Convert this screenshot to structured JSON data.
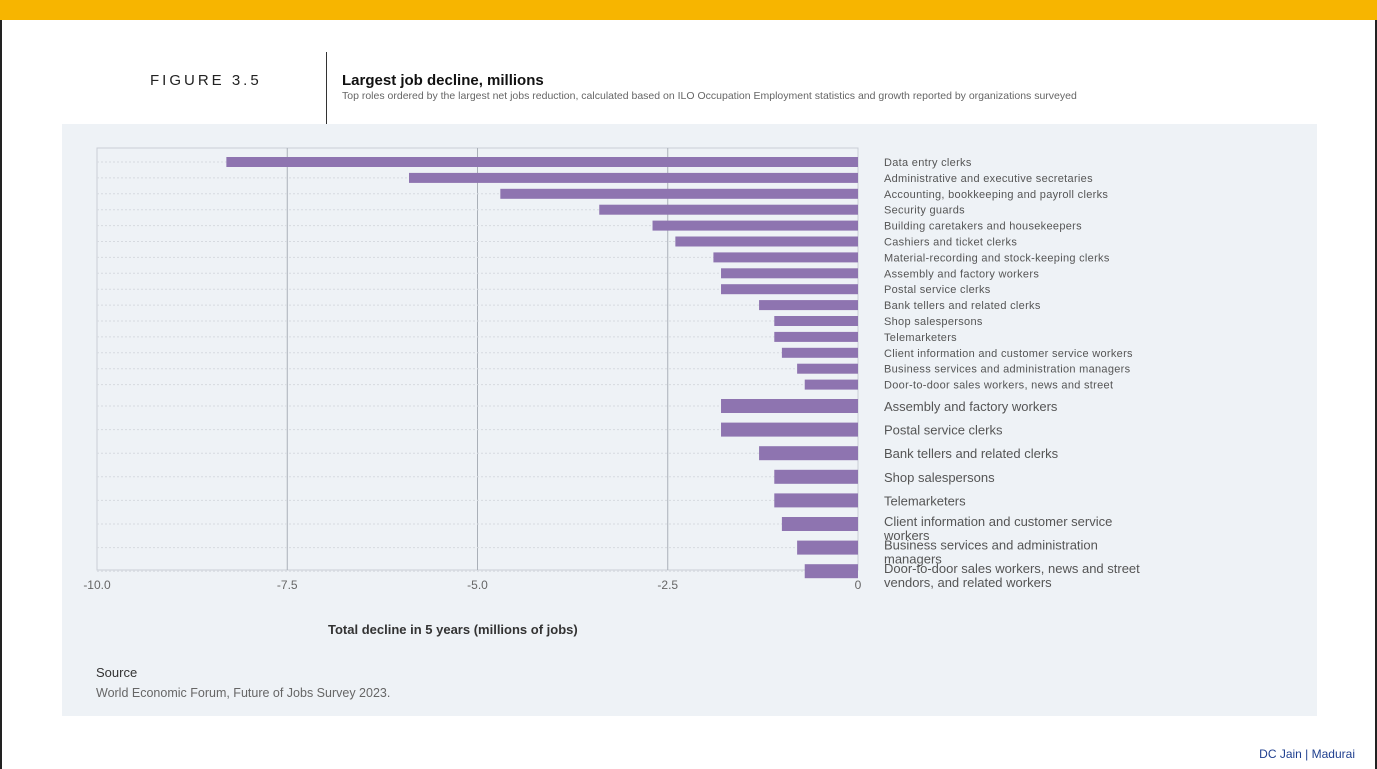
{
  "figure": {
    "number": "FIGURE 3.5",
    "title": "Largest job decline, millions",
    "subtitle": "Top roles ordered by the largest net jobs reduction, calculated based on ILO Occupation Employment statistics and growth reported by organizations surveyed"
  },
  "chart_data": {
    "type": "bar",
    "orientation": "horizontal",
    "xlabel": "Total decline in 5 years (millions of jobs)",
    "xlim": [
      -10.0,
      0
    ],
    "x_ticks": [
      "-10.0",
      "-7.5",
      "-5.0",
      "-2.5",
      "0"
    ],
    "grid": true,
    "categories": [
      "Data entry clerks",
      "Administrative and executive secretaries",
      "Accounting, bookkeeping and payroll clerks",
      "Security guards",
      "Building caretakers and housekeepers",
      "Cashiers and ticket clerks",
      "Material-recording and stock-keeping clerks",
      "Assembly and factory workers",
      "Postal service clerks",
      "Bank tellers and related clerks",
      "Shop salespersons",
      "Telemarketers",
      "Client information and customer service workers",
      "Business services and administration managers",
      "Door-to-door sales workers, news and street",
      "Assembly and factory workers",
      "Postal service clerks",
      "Bank tellers and related clerks",
      "Shop salespersons",
      "Telemarketers",
      "Client information and customer service workers",
      "Business services and administration managers",
      "Door-to-door sales workers, news and street vendors, and related workers"
    ],
    "values": [
      -8.3,
      -5.9,
      -4.7,
      -3.4,
      -2.7,
      -2.4,
      -1.9,
      -1.8,
      -1.8,
      -1.3,
      -1.1,
      -1.1,
      -1.0,
      -0.8,
      -0.7,
      -1.8,
      -1.8,
      -1.3,
      -1.1,
      -1.1,
      -1.0,
      -0.8,
      -0.7
    ],
    "color": "#8e74b0"
  },
  "source": {
    "label": "Source",
    "text": "World Economic Forum, Future of Jobs Survey 2023."
  },
  "footer": "DC Jain | Madurai"
}
